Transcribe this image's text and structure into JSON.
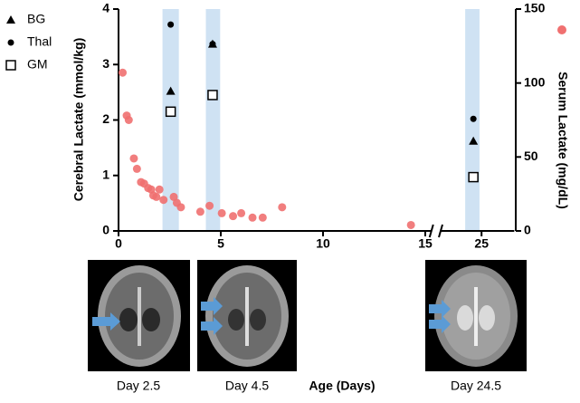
{
  "chart_data": {
    "type": "scatter",
    "ylabel": "Cerebral Lactate (mmol/kg)",
    "y2label": "Serum Lactate (mg/dL)",
    "xlabel": "Age (Days)",
    "ylim": [
      0,
      4
    ],
    "yticks": [
      0,
      1,
      2,
      3,
      4
    ],
    "y2lim": [
      0,
      150
    ],
    "y2ticks": [
      0,
      50,
      100,
      150
    ],
    "x_segments": [
      {
        "xlim": [
          0,
          15.3
        ],
        "xticks": [
          0,
          5,
          10,
          15
        ]
      },
      {
        "xlim": [
          23,
          26.6
        ],
        "xticks": [
          25
        ]
      }
    ],
    "bands": [
      [
        2.15,
        2.95
      ],
      [
        4.27,
        4.97
      ],
      [
        24.2,
        24.9
      ]
    ],
    "band_color": "#cfe2f3",
    "series": [
      {
        "name": "BG",
        "marker": "triangle",
        "color": "#000000",
        "x": [
          2.55,
          4.6,
          24.6
        ],
        "values": [
          2.52,
          3.37,
          1.62
        ]
      },
      {
        "name": "Thal",
        "marker": "circle",
        "color": "#000000",
        "x": [
          2.55,
          4.6,
          24.6
        ],
        "values": [
          3.72,
          3.37,
          2.02
        ]
      },
      {
        "name": "GM",
        "marker": "square",
        "color": "#000000",
        "x": [
          2.55,
          4.6,
          24.6
        ],
        "values": [
          2.15,
          2.45,
          0.97
        ]
      },
      {
        "marker": "circle",
        "color": "#f07070",
        "axis": "y2",
        "x": [
          0.2,
          0.4,
          0.5,
          0.75,
          0.9,
          1.1,
          1.25,
          1.45,
          1.6,
          1.7,
          1.85,
          2.0,
          2.2,
          2.7,
          2.85,
          3.05,
          4.0,
          4.45,
          5.05,
          5.6,
          6.0,
          6.55,
          7.05,
          8.0,
          14.3
        ],
        "values": [
          107,
          78,
          75,
          49,
          42,
          33,
          32,
          29,
          28,
          24,
          23,
          28,
          21,
          23,
          19,
          16,
          13,
          17,
          12,
          10,
          12,
          9,
          9,
          16,
          4
        ]
      }
    ],
    "images": [
      {
        "caption": "Day 2.5"
      },
      {
        "caption": "Day 4.5"
      },
      {
        "caption": "Day 24.5"
      }
    ]
  }
}
